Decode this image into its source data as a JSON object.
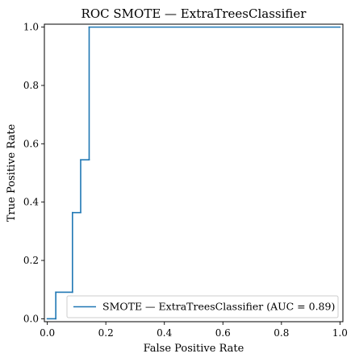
{
  "chart_data": {
    "type": "line",
    "title": "ROC SMOTE — ExtraTreesClassifier",
    "xlabel": "False Positive Rate",
    "ylabel": "True Positive Rate",
    "xlim": [
      -0.01,
      1.01
    ],
    "ylim": [
      -0.01,
      1.01
    ],
    "xticks": [
      0.0,
      0.2,
      0.4,
      0.6,
      0.8,
      1.0
    ],
    "yticks": [
      0.0,
      0.2,
      0.4,
      0.6,
      0.8,
      1.0
    ],
    "xtick_labels": [
      "0.0",
      "0.2",
      "0.4",
      "0.6",
      "0.8",
      "1.0"
    ],
    "ytick_labels": [
      "0.0",
      "0.2",
      "0.4",
      "0.6",
      "0.8",
      "1.0"
    ],
    "grid": false,
    "legend_position": "lower-right",
    "series": [
      {
        "name": "SMOTE — ExtraTreesClassifier (AUC = 0.89)",
        "color": "#1f77b4",
        "x": [
          0.0,
          0.029,
          0.029,
          0.086,
          0.086,
          0.114,
          0.114,
          0.143,
          0.143,
          1.0
        ],
        "y": [
          0.0,
          0.0,
          0.091,
          0.091,
          0.364,
          0.364,
          0.545,
          0.545,
          1.0,
          1.0
        ]
      }
    ]
  }
}
